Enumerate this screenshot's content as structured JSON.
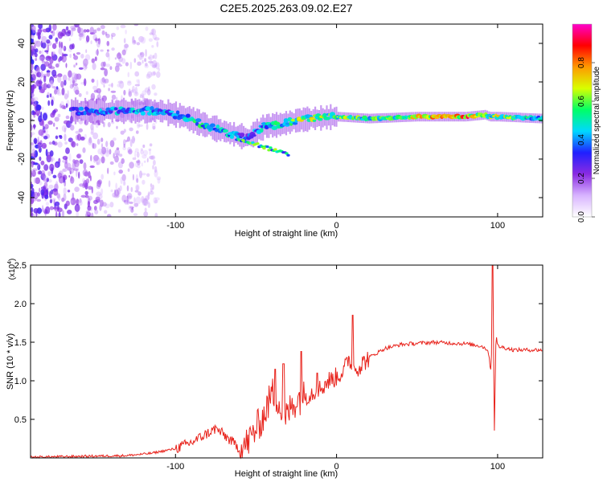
{
  "figure": {
    "title": "C2E5.2025.263.09.02.E27"
  },
  "colors": {
    "colormap": [
      "#ffffff",
      "#d8b4ff",
      "#8a2be2",
      "#2020ff",
      "#00d8ff",
      "#00ff66",
      "#d8ff00",
      "#ff9900",
      "#ff0000",
      "#ff00cc"
    ],
    "snr_line": "#e8231c",
    "axis": "#000000"
  },
  "chart_data": [
    {
      "type": "heatmap",
      "title": "C2E5.2025.263.09.02.E27",
      "xlabel": "Height of straight line (km)",
      "ylabel": "Frequency (Hz)",
      "xlim": [
        -190,
        128
      ],
      "ylim": [
        -50,
        50
      ],
      "xticks": [
        -100,
        0,
        100
      ],
      "yticks": [
        -40,
        -20,
        0,
        20,
        40
      ],
      "colorbar": {
        "label": "Normalized spectral amplitude",
        "range": [
          0,
          1
        ],
        "ticks": [
          "0.0",
          "0.2",
          "0.4",
          "0.6",
          "0.8"
        ],
        "tick_values": [
          0.0,
          0.2,
          0.4,
          0.6,
          0.8
        ]
      },
      "ridge": {
        "x": [
          -165,
          -150,
          -130,
          -110,
          -95,
          -80,
          -65,
          -55,
          -45,
          -35,
          -25,
          -15,
          0,
          20,
          50,
          80,
          92,
          95,
          100,
          128
        ],
        "frequency": [
          5,
          5,
          5,
          5,
          2,
          -3,
          -7,
          -9,
          -3,
          -2,
          0,
          1,
          2,
          1,
          2,
          2,
          3,
          2,
          2,
          1
        ],
        "amplitude": [
          0.4,
          0.45,
          0.5,
          0.5,
          0.55,
          0.6,
          0.5,
          0.4,
          0.55,
          0.6,
          0.7,
          0.75,
          0.7,
          0.65,
          0.8,
          0.95,
          0.8,
          0.7,
          0.75,
          0.6
        ]
      },
      "noise_region_x": [
        -190,
        -110
      ]
    },
    {
      "type": "line",
      "xlabel": "Height of straight line (km)",
      "ylabel": "SNR (10 * v/v)",
      "y_multiplier": "(x10",
      "y_multiplier_exp": "4",
      "y_multiplier_close": ")",
      "xlim": [
        -190,
        128
      ],
      "ylim": [
        0,
        2.5
      ],
      "xticks": [
        -100,
        0,
        100
      ],
      "yticks": [
        0.5,
        1.0,
        1.5,
        2.0,
        2.5
      ],
      "ytick_labels": [
        "0.5",
        "1.0",
        "1.5",
        "2.0",
        "2.5"
      ],
      "series": [
        {
          "name": "SNR",
          "x": [
            -190,
            -160,
            -130,
            -115,
            -100,
            -90,
            -80,
            -75,
            -70,
            -60,
            -55,
            -45,
            -40,
            -36,
            -33,
            -30,
            -25,
            -20,
            -15,
            -10,
            -5,
            0,
            5,
            8,
            10,
            15,
            20,
            30,
            40,
            60,
            80,
            90,
            94,
            96,
            97,
            98,
            99,
            100,
            110,
            128
          ],
          "y": [
            0.01,
            0.02,
            0.03,
            0.06,
            0.12,
            0.2,
            0.32,
            0.38,
            0.3,
            0.12,
            0.2,
            0.55,
            0.85,
            0.75,
            0.4,
            0.6,
            0.75,
            0.8,
            0.85,
            0.9,
            1.0,
            1.05,
            1.15,
            1.3,
            1.15,
            1.2,
            1.3,
            1.42,
            1.47,
            1.5,
            1.48,
            1.45,
            1.4,
            1.1,
            2.4,
            0.35,
            1.6,
            1.45,
            1.4,
            1.4
          ]
        }
      ],
      "peaks": [
        {
          "x": -38,
          "y": 1.15
        },
        {
          "x": -33,
          "y": 1.22
        },
        {
          "x": -22,
          "y": 1.38
        },
        {
          "x": -12,
          "y": 1.1
        },
        {
          "x": 10,
          "y": 1.85
        },
        {
          "x": 97,
          "y": 2.5
        }
      ]
    }
  ]
}
